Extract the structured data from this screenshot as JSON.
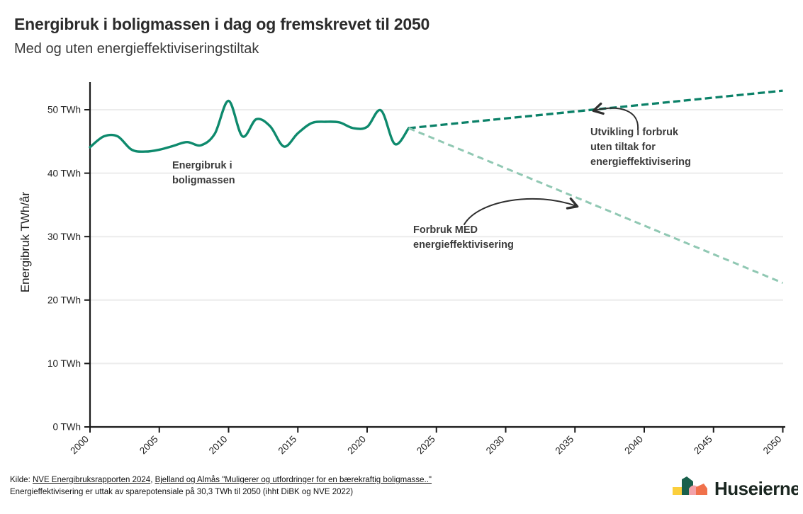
{
  "header": {
    "title": "Energibruk i boligmassen i dag og fremskrevet til 2050",
    "subtitle": "Med og uten energieffektiviseringstiltak"
  },
  "chart_data": {
    "type": "line",
    "title": "Energibruk i boligmassen i dag og fremskrevet til 2050",
    "subtitle": "Med og uten energieffektiviseringstiltak",
    "xlabel": "",
    "ylabel": "Energibruk TWh/år",
    "xlim": [
      2000,
      2050
    ],
    "ylim": [
      0,
      54.3
    ],
    "grid": "horizontal",
    "legend": "none",
    "y_ticks": [
      0,
      10,
      20,
      30,
      40,
      50
    ],
    "y_tick_format": "{v} TWh",
    "x_ticks": [
      2000,
      2005,
      2010,
      2015,
      2020,
      2025,
      2030,
      2035,
      2040,
      2045,
      2050
    ],
    "series": [
      {
        "name": "Energibruk i boligmassen",
        "style": "solid",
        "smooth": true,
        "color": "#0e8a6d",
        "width": 3.4,
        "x": [
          2000,
          2001,
          2002,
          2003,
          2004,
          2005,
          2006,
          2007,
          2008,
          2009,
          2010,
          2011,
          2012,
          2013,
          2014,
          2015,
          2016,
          2017,
          2018,
          2019,
          2020,
          2021,
          2022,
          2023
        ],
        "values": [
          44.1,
          45.8,
          45.8,
          43.7,
          43.4,
          43.7,
          44.3,
          44.9,
          44.4,
          46.2,
          51.4,
          45.8,
          48.5,
          47.4,
          44.2,
          46.3,
          47.9,
          48.1,
          48.0,
          47.1,
          47.3,
          49.9,
          44.6,
          47.1
        ]
      },
      {
        "name": "Utvikling i forbruk uten tiltak for energieffektivisering",
        "style": "dashed",
        "dash": "10 5",
        "smooth": false,
        "color": "#0b8168",
        "width": 3.3,
        "x": [
          2023,
          2050
        ],
        "values": [
          47.1,
          53.0
        ]
      },
      {
        "name": "Forbruk MED energieffektivisering",
        "style": "dashed",
        "dash": "9 6",
        "smooth": false,
        "color": "#90c8b3",
        "width": 3.0,
        "x": [
          2023,
          2050
        ],
        "values": [
          47.1,
          22.7
        ]
      }
    ]
  },
  "annotations": {
    "historical": "Energibruk i\nboligmassen",
    "uten": "Utvikling i forbruk\nuten tiltak for\nenergieffektivisering",
    "med": "Forbruk MED\nenergieffektivisering"
  },
  "footer": {
    "kilde_prefix": "Kilde: ",
    "link1": "NVE Energibruksrapporten 2024",
    "separator": ", ",
    "link2": "Bjelland og Almås \"Muligerer og utfordringer for en bærekraftig boligmasse..\"",
    "line2": "Energieffektivisering er uttak av sparepotensiale på 30,3 TWh til 2050 (ihht DiBK og NVE 2022)"
  },
  "logo": {
    "text": "Huseierne",
    "colors": {
      "yellow": "#fbcf3c",
      "green": "#19604c",
      "pink": "#f2a2a9",
      "coral": "#f0714b",
      "text": "#1a2620"
    }
  }
}
